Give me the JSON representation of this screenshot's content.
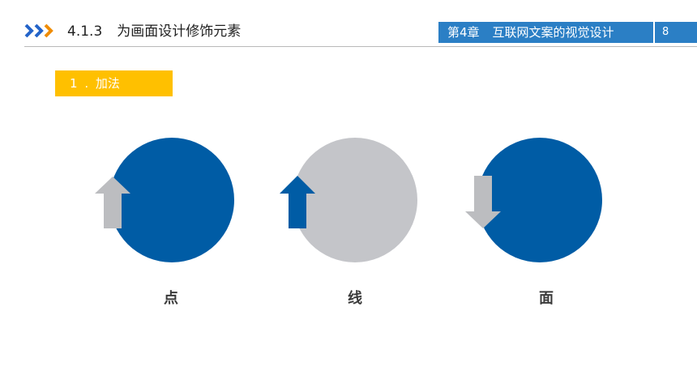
{
  "header": {
    "section_number": "4.1.3",
    "section_title": "为画面设计修饰元素",
    "chapter_number": "第4章",
    "chapter_title": "互联网文案的视觉设计",
    "page_number": "8"
  },
  "subtitle": {
    "number": "1",
    "separator": ".",
    "text": "加法"
  },
  "labels": [
    "点",
    "线",
    "面"
  ],
  "colors": {
    "blue": "#005ca5",
    "gray": "#c4c5c9",
    "arrow_gray": "#bcbdc0",
    "accent_blue": "#2b7fc5",
    "yellow": "#ffc000",
    "chevron_blue": "#2464c9",
    "chevron_orange": "#f08c00"
  }
}
